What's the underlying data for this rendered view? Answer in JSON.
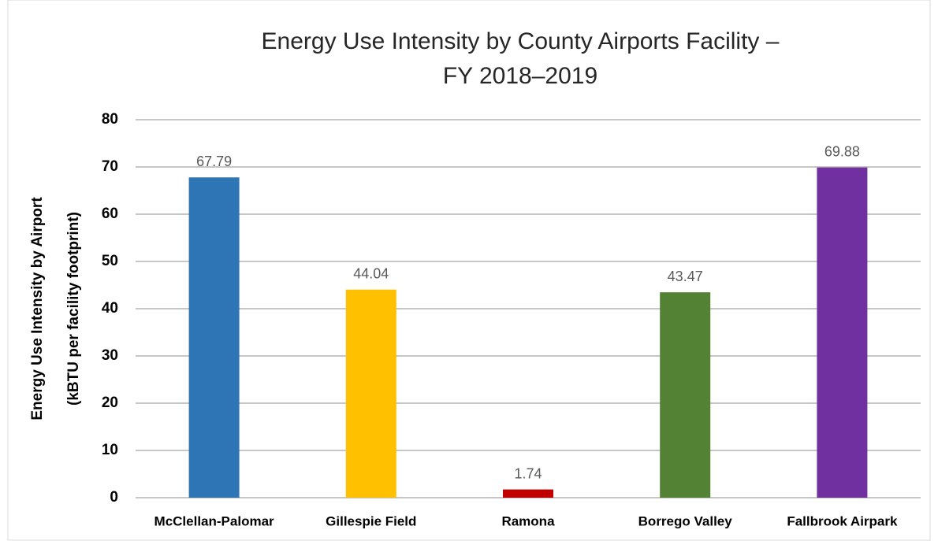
{
  "chart_data": {
    "type": "bar",
    "title": [
      "Energy Use Intensity by County Airports Facility –",
      "FY 2018–2019"
    ],
    "y_label": [
      "Energy Use Intensity by Airport",
      "(kBTU per facility footprint)"
    ],
    "categories": [
      "McClellan-Palomar",
      "Gillespie Field",
      "Ramona",
      "Borrego Valley",
      "Fallbrook Airpark"
    ],
    "values": [
      67.79,
      44.04,
      1.74,
      43.47,
      69.88
    ],
    "colors": [
      "#2e75b6",
      "#ffc000",
      "#c00000",
      "#548235",
      "#7030a0"
    ],
    "ylim": [
      0,
      80
    ],
    "yticks": [
      0,
      10,
      20,
      30,
      40,
      50,
      60,
      70,
      80
    ],
    "grid": true
  }
}
